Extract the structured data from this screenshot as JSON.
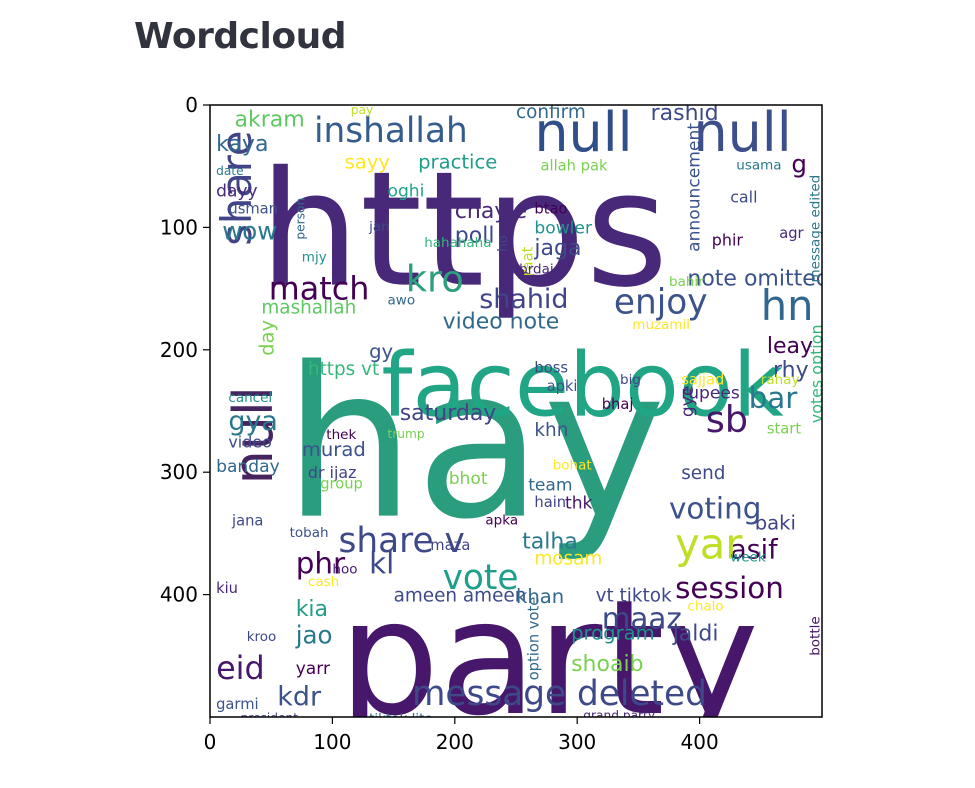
{
  "page": {
    "title": "Wordcloud"
  },
  "chart_data": {
    "type": "wordcloud",
    "title": "",
    "xlabel": "",
    "ylabel": "",
    "xlim": [
      0,
      500
    ],
    "ylim": [
      500,
      0
    ],
    "x_ticks": [
      0,
      100,
      200,
      300,
      400
    ],
    "y_ticks": [
      0,
      100,
      200,
      300,
      400
    ],
    "background": "#ffffff",
    "words": [
      {
        "text": "hay",
        "x": 60,
        "y": 210,
        "size": 170,
        "color": "#2a9d7f"
      },
      {
        "text": "party",
        "x": 105,
        "y": 400,
        "size": 130,
        "color": "#46176a"
      },
      {
        "text": "https",
        "x": 40,
        "y": 50,
        "size": 130,
        "color": "#482878"
      },
      {
        "text": "facebook",
        "x": 140,
        "y": 200,
        "size": 72,
        "color": "#21a685"
      },
      {
        "text": "null",
        "x": 265,
        "y": 5,
        "size": 44,
        "color": "#2f4f8b"
      },
      {
        "text": "null",
        "x": 395,
        "y": 5,
        "size": 44,
        "color": "#3c4f8a"
      },
      {
        "text": "null",
        "x": 18,
        "y": 310,
        "size": 44,
        "color": "#46245f",
        "rotate": true
      },
      {
        "text": "inshallah",
        "x": 85,
        "y": 10,
        "size": 28,
        "color": "#365c8d"
      },
      {
        "text": "share",
        "x": 8,
        "y": 115,
        "size": 34,
        "color": "#414487",
        "rotate": true
      },
      {
        "text": "match",
        "x": 48,
        "y": 140,
        "size": 26,
        "color": "#440154"
      },
      {
        "text": "kro",
        "x": 160,
        "y": 130,
        "size": 30,
        "color": "#2c9f7f"
      },
      {
        "text": "enjoy",
        "x": 330,
        "y": 150,
        "size": 28,
        "color": "#3b528b"
      },
      {
        "text": "hn",
        "x": 450,
        "y": 150,
        "size": 34,
        "color": "#31688e"
      },
      {
        "text": "shahid",
        "x": 220,
        "y": 150,
        "size": 22,
        "color": "#414487"
      },
      {
        "text": "note omitted",
        "x": 390,
        "y": 135,
        "size": 18,
        "color": "#3b528b"
      },
      {
        "text": "video note",
        "x": 190,
        "y": 170,
        "size": 18,
        "color": "#31688e"
      },
      {
        "text": "mashallah",
        "x": 42,
        "y": 160,
        "size": 15,
        "color": "#5ec962"
      },
      {
        "text": "day",
        "x": 40,
        "y": 205,
        "size": 16,
        "color": "#7ad151",
        "rotate": true
      },
      {
        "text": "https vt",
        "x": 80,
        "y": 210,
        "size": 15,
        "color": "#35b779"
      },
      {
        "text": "gy",
        "x": 130,
        "y": 195,
        "size": 16,
        "color": "#3b528b"
      },
      {
        "text": "akram",
        "x": 20,
        "y": 5,
        "size": 18,
        "color": "#5ec962"
      },
      {
        "text": "kaya",
        "x": 5,
        "y": 25,
        "size": 18,
        "color": "#31688e"
      },
      {
        "text": "sayy",
        "x": 110,
        "y": 40,
        "size": 16,
        "color": "#fde725"
      },
      {
        "text": "practice",
        "x": 170,
        "y": 40,
        "size": 16,
        "color": "#1f9e89"
      },
      {
        "text": "confirm",
        "x": 250,
        "y": 0,
        "size": 15,
        "color": "#31688e"
      },
      {
        "text": "rashid",
        "x": 360,
        "y": 0,
        "size": 18,
        "color": "#3e4989"
      },
      {
        "text": "announcement",
        "x": 390,
        "y": 120,
        "size": 14,
        "color": "#3b528b",
        "rotate": true
      },
      {
        "text": "usama",
        "x": 430,
        "y": 45,
        "size": 11,
        "color": "#2a788e"
      },
      {
        "text": "g",
        "x": 475,
        "y": 40,
        "size": 20,
        "color": "#440154"
      },
      {
        "text": "allah pak",
        "x": 270,
        "y": 45,
        "size": 12,
        "color": "#7ad151"
      },
      {
        "text": "chayie",
        "x": 200,
        "y": 80,
        "size": 18,
        "color": "#482878"
      },
      {
        "text": "poll",
        "x": 200,
        "y": 100,
        "size": 18,
        "color": "#3e4989"
      },
      {
        "text": "btao",
        "x": 265,
        "y": 80,
        "size": 12,
        "color": "#440154"
      },
      {
        "text": "bowler",
        "x": 265,
        "y": 95,
        "size": 14,
        "color": "#21918c"
      },
      {
        "text": "jaga",
        "x": 265,
        "y": 110,
        "size": 18,
        "color": "#3e4989"
      },
      {
        "text": "wow",
        "x": 10,
        "y": 95,
        "size": 20,
        "color": "#2a788e"
      },
      {
        "text": "dayy",
        "x": 5,
        "y": 65,
        "size": 14,
        "color": "#482878"
      },
      {
        "text": "usman",
        "x": 15,
        "y": 80,
        "size": 12,
        "color": "#3b528b"
      },
      {
        "text": "date",
        "x": 5,
        "y": 50,
        "size": 10,
        "color": "#2a788e"
      },
      {
        "text": "oghi",
        "x": 145,
        "y": 65,
        "size": 14,
        "color": "#20a486"
      },
      {
        "text": "jan",
        "x": 130,
        "y": 95,
        "size": 11,
        "color": "#3e4989"
      },
      {
        "text": "mjy",
        "x": 75,
        "y": 120,
        "size": 11,
        "color": "#21918c"
      },
      {
        "text": "person",
        "x": 70,
        "y": 110,
        "size": 10,
        "color": "#31688e",
        "rotate": true
      },
      {
        "text": "hahahaha",
        "x": 175,
        "y": 108,
        "size": 11,
        "color": "#35b779"
      },
      {
        "text": "ho",
        "x": 235,
        "y": 120,
        "size": 11,
        "color": "#414487",
        "rotate": true
      },
      {
        "text": "raat",
        "x": 255,
        "y": 140,
        "size": 12,
        "color": "#bddf26",
        "rotate": true
      },
      {
        "text": "zabrdaist",
        "x": 240,
        "y": 130,
        "size": 11,
        "color": "#482878"
      },
      {
        "text": "awo",
        "x": 145,
        "y": 155,
        "size": 11,
        "color": "#31688e"
      },
      {
        "text": "muzamil",
        "x": 345,
        "y": 175,
        "size": 11,
        "color": "#fde725"
      },
      {
        "text": "bahir",
        "x": 375,
        "y": 140,
        "size": 11,
        "color": "#7ad151"
      },
      {
        "text": "phir",
        "x": 410,
        "y": 105,
        "size": 13,
        "color": "#440154"
      },
      {
        "text": "agr",
        "x": 465,
        "y": 100,
        "size": 12,
        "color": "#482878"
      },
      {
        "text": "call",
        "x": 425,
        "y": 70,
        "size": 13,
        "color": "#3e4989"
      },
      {
        "text": "message edited",
        "x": 490,
        "y": 145,
        "size": 11,
        "color": "#2a788e",
        "rotate": true
      },
      {
        "text": "leay",
        "x": 455,
        "y": 190,
        "size": 18,
        "color": "#440154"
      },
      {
        "text": "rhy",
        "x": 460,
        "y": 210,
        "size": 18,
        "color": "#3e4989"
      },
      {
        "text": "bar",
        "x": 440,
        "y": 230,
        "size": 24,
        "color": "#2a788e"
      },
      {
        "text": "sb",
        "x": 405,
        "y": 245,
        "size": 30,
        "color": "#46176a"
      },
      {
        "text": "rupees",
        "x": 385,
        "y": 230,
        "size": 14,
        "color": "#482878"
      },
      {
        "text": "sajjad",
        "x": 385,
        "y": 220,
        "size": 12,
        "color": "#fde725"
      },
      {
        "text": "bhaj",
        "x": 320,
        "y": 240,
        "size": 12,
        "color": "#440154"
      },
      {
        "text": "big",
        "x": 335,
        "y": 220,
        "size": 11,
        "color": "#414487"
      },
      {
        "text": "rahay",
        "x": 450,
        "y": 220,
        "size": 11,
        "color": "#bddf26"
      },
      {
        "text": "boss",
        "x": 265,
        "y": 210,
        "size": 12,
        "color": "#3e4989"
      },
      {
        "text": "apki",
        "x": 275,
        "y": 225,
        "size": 12,
        "color": "#3b528b"
      },
      {
        "text": "start",
        "x": 455,
        "y": 260,
        "size": 12,
        "color": "#7ad151"
      },
      {
        "text": "votes option",
        "x": 490,
        "y": 260,
        "size": 13,
        "color": "#35b779",
        "rotate": true
      },
      {
        "text": "gye",
        "x": 385,
        "y": 255,
        "size": 14,
        "color": "#482878",
        "rotate": true
      },
      {
        "text": "saturday",
        "x": 155,
        "y": 245,
        "size": 18,
        "color": "#414487"
      },
      {
        "text": "khn",
        "x": 265,
        "y": 260,
        "size": 15,
        "color": "#3b528b"
      },
      {
        "text": "murad",
        "x": 75,
        "y": 275,
        "size": 16,
        "color": "#3b528b"
      },
      {
        "text": "dr ijaz",
        "x": 80,
        "y": 295,
        "size": 13,
        "color": "#414487"
      },
      {
        "text": "group",
        "x": 90,
        "y": 305,
        "size": 12,
        "color": "#7ad151"
      },
      {
        "text": "thek",
        "x": 95,
        "y": 265,
        "size": 11,
        "color": "#440154"
      },
      {
        "text": "trump",
        "x": 145,
        "y": 265,
        "size": 10,
        "color": "#7ad151"
      },
      {
        "text": "video",
        "x": 15,
        "y": 270,
        "size": 13,
        "color": "#3e4989"
      },
      {
        "text": "banday",
        "x": 5,
        "y": 290,
        "size": 14,
        "color": "#31688e"
      },
      {
        "text": "cancel",
        "x": 15,
        "y": 235,
        "size": 11,
        "color": "#21918c"
      },
      {
        "text": "gya",
        "x": 15,
        "y": 250,
        "size": 22,
        "color": "#2a788e"
      },
      {
        "text": "bhot",
        "x": 195,
        "y": 300,
        "size": 14,
        "color": "#7ad151"
      },
      {
        "text": "bohat",
        "x": 280,
        "y": 290,
        "size": 11,
        "color": "#fde725"
      },
      {
        "text": "team",
        "x": 260,
        "y": 305,
        "size": 14,
        "color": "#31688e"
      },
      {
        "text": "hain",
        "x": 265,
        "y": 320,
        "size": 12,
        "color": "#414487"
      },
      {
        "text": "thk",
        "x": 290,
        "y": 320,
        "size": 14,
        "color": "#46176a"
      },
      {
        "text": "send",
        "x": 385,
        "y": 295,
        "size": 15,
        "color": "#3e4989"
      },
      {
        "text": "voting",
        "x": 375,
        "y": 320,
        "size": 24,
        "color": "#3b528b"
      },
      {
        "text": "baki",
        "x": 445,
        "y": 335,
        "size": 16,
        "color": "#414487"
      },
      {
        "text": "asif",
        "x": 425,
        "y": 355,
        "size": 22,
        "color": "#440154"
      },
      {
        "text": "yar",
        "x": 380,
        "y": 345,
        "size": 34,
        "color": "#bddf26"
      },
      {
        "text": "week",
        "x": 425,
        "y": 365,
        "size": 11,
        "color": "#21918c"
      },
      {
        "text": "share v",
        "x": 105,
        "y": 345,
        "size": 28,
        "color": "#3e4989"
      },
      {
        "text": "talha",
        "x": 255,
        "y": 350,
        "size": 18,
        "color": "#2a788e"
      },
      {
        "text": "mosam",
        "x": 265,
        "y": 365,
        "size": 15,
        "color": "#fde725"
      },
      {
        "text": "apka",
        "x": 225,
        "y": 335,
        "size": 11,
        "color": "#440154"
      },
      {
        "text": "maza",
        "x": 180,
        "y": 355,
        "size": 12,
        "color": "#414487"
      },
      {
        "text": "tobah",
        "x": 65,
        "y": 345,
        "size": 11,
        "color": "#3b528b"
      },
      {
        "text": "jana",
        "x": 18,
        "y": 335,
        "size": 12,
        "color": "#3e4989"
      },
      {
        "text": "phr",
        "x": 70,
        "y": 365,
        "size": 24,
        "color": "#440154"
      },
      {
        "text": "kl",
        "x": 130,
        "y": 365,
        "size": 24,
        "color": "#3e4989"
      },
      {
        "text": "vote",
        "x": 190,
        "y": 375,
        "size": 28,
        "color": "#1f9e89"
      },
      {
        "text": "hoo",
        "x": 100,
        "y": 375,
        "size": 11,
        "color": "#46176a"
      },
      {
        "text": "cash",
        "x": 80,
        "y": 385,
        "size": 11,
        "color": "#fde725"
      },
      {
        "text": "kiu",
        "x": 5,
        "y": 390,
        "size": 12,
        "color": "#482878"
      },
      {
        "text": "session",
        "x": 380,
        "y": 385,
        "size": 24,
        "color": "#440154"
      },
      {
        "text": "vt tiktok",
        "x": 315,
        "y": 395,
        "size": 15,
        "color": "#3e4989"
      },
      {
        "text": "ameen ameen",
        "x": 150,
        "y": 395,
        "size": 15,
        "color": "#3e4989"
      },
      {
        "text": "khan",
        "x": 250,
        "y": 395,
        "size": 16,
        "color": "#31688e"
      },
      {
        "text": "kia",
        "x": 70,
        "y": 405,
        "size": 18,
        "color": "#1f9e89"
      },
      {
        "text": "maaz",
        "x": 320,
        "y": 410,
        "size": 24,
        "color": "#3e4989"
      },
      {
        "text": "option vote",
        "x": 260,
        "y": 470,
        "size": 12,
        "color": "#31688e",
        "rotate": true
      },
      {
        "text": "jao",
        "x": 70,
        "y": 425,
        "size": 20,
        "color": "#2a788e"
      },
      {
        "text": "kroo",
        "x": 30,
        "y": 430,
        "size": 11,
        "color": "#3e4989"
      },
      {
        "text": "program",
        "x": 295,
        "y": 425,
        "size": 16,
        "color": "#21918c"
      },
      {
        "text": "jaldi",
        "x": 378,
        "y": 425,
        "size": 18,
        "color": "#3e4989"
      },
      {
        "text": "chalo",
        "x": 390,
        "y": 405,
        "size": 11,
        "color": "#fde725"
      },
      {
        "text": "bottle",
        "x": 490,
        "y": 450,
        "size": 11,
        "color": "#46176a",
        "rotate": true
      },
      {
        "text": "eid",
        "x": 5,
        "y": 450,
        "size": 26,
        "color": "#46176a"
      },
      {
        "text": "yarr",
        "x": 70,
        "y": 455,
        "size": 14,
        "color": "#440154"
      },
      {
        "text": "shoaib",
        "x": 295,
        "y": 450,
        "size": 18,
        "color": "#7ad151"
      },
      {
        "text": "kdr",
        "x": 55,
        "y": 475,
        "size": 22,
        "color": "#3b528b"
      },
      {
        "text": "message deleted",
        "x": 165,
        "y": 470,
        "size": 28,
        "color": "#3e4989"
      },
      {
        "text": "garmi",
        "x": 5,
        "y": 485,
        "size": 12,
        "color": "#3b528b"
      },
      {
        "text": "president",
        "x": 25,
        "y": 497,
        "size": 10,
        "color": "#414487"
      },
      {
        "text": "tiktok lite",
        "x": 130,
        "y": 497,
        "size": 11,
        "color": "#31688e"
      },
      {
        "text": "grand party",
        "x": 305,
        "y": 495,
        "size": 10,
        "color": "#482878"
      },
      {
        "text": "pay",
        "x": 115,
        "y": 0,
        "size": 10,
        "color": "#bddf26"
      }
    ]
  }
}
